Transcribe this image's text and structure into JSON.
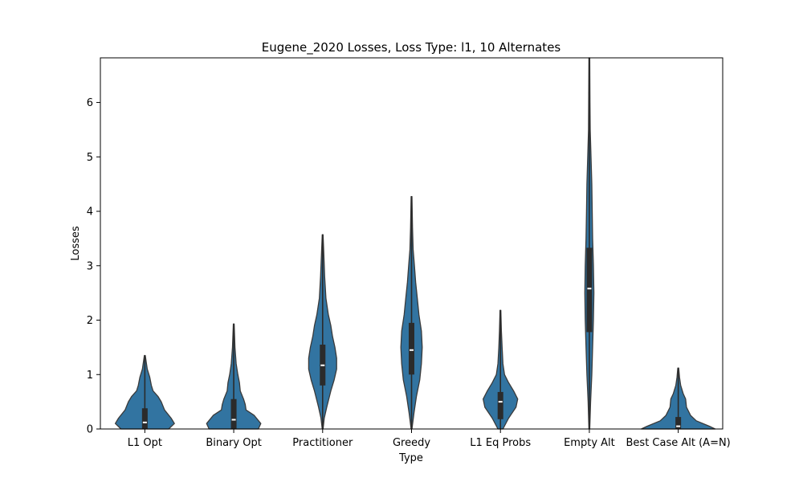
{
  "chart_data": {
    "type": "violin",
    "title": "Eugene_2020 Losses, Loss Type: l1, 10 Alternates",
    "xlabel": "Type",
    "ylabel": "Losses",
    "ylim": [
      0,
      6.82
    ],
    "yticks": [
      0,
      1,
      2,
      3,
      4,
      5,
      6
    ],
    "grid": false,
    "colors": {
      "violin": "#3274a1",
      "outline": "#3a3a3a",
      "box": "#2b2b2b",
      "median": "#ffffff"
    },
    "categories": [
      "L1 Opt",
      "Binary Opt",
      "Practitioner",
      "Greedy",
      "L1 Eq Probs",
      "Empty Alt",
      "Best Case Alt (A=N)"
    ],
    "series": [
      {
        "category": "L1 Opt",
        "min": 0,
        "q1": 0.0,
        "median": 0.12,
        "q3": 0.38,
        "max": 1.35,
        "density": [
          [
            0,
            0.29
          ],
          [
            0.1,
            0.36
          ],
          [
            0.2,
            0.32
          ],
          [
            0.35,
            0.24
          ],
          [
            0.5,
            0.2
          ],
          [
            0.6,
            0.16
          ],
          [
            0.7,
            0.1
          ],
          [
            0.8,
            0.08
          ],
          [
            0.95,
            0.06
          ],
          [
            1.1,
            0.03
          ],
          [
            1.25,
            0.015
          ],
          [
            1.35,
            0.005
          ]
        ]
      },
      {
        "category": "Binary Opt",
        "min": 0,
        "q1": 0.0,
        "median": 0.17,
        "q3": 0.55,
        "max": 1.93,
        "density": [
          [
            0,
            0.3
          ],
          [
            0.1,
            0.33
          ],
          [
            0.25,
            0.25
          ],
          [
            0.35,
            0.15
          ],
          [
            0.45,
            0.14
          ],
          [
            0.55,
            0.12
          ],
          [
            0.7,
            0.08
          ],
          [
            0.85,
            0.07
          ],
          [
            1.0,
            0.05
          ],
          [
            1.2,
            0.03
          ],
          [
            1.5,
            0.015
          ],
          [
            1.93,
            0.005
          ]
        ]
      },
      {
        "category": "Practitioner",
        "min": 0,
        "q1": 0.8,
        "median": 1.17,
        "q3": 1.55,
        "max": 3.57,
        "density": [
          [
            0,
            0.005
          ],
          [
            0.2,
            0.02
          ],
          [
            0.4,
            0.05
          ],
          [
            0.7,
            0.1
          ],
          [
            0.9,
            0.14
          ],
          [
            1.1,
            0.17
          ],
          [
            1.3,
            0.17
          ],
          [
            1.5,
            0.15
          ],
          [
            1.7,
            0.12
          ],
          [
            1.9,
            0.1
          ],
          [
            2.1,
            0.07
          ],
          [
            2.4,
            0.04
          ],
          [
            2.8,
            0.025
          ],
          [
            3.2,
            0.015
          ],
          [
            3.57,
            0.005
          ]
        ]
      },
      {
        "category": "Greedy",
        "min": 0,
        "q1": 1.0,
        "median": 1.45,
        "q3": 1.95,
        "max": 4.27,
        "density": [
          [
            0,
            0.005
          ],
          [
            0.3,
            0.03
          ],
          [
            0.6,
            0.06
          ],
          [
            0.9,
            0.1
          ],
          [
            1.2,
            0.12
          ],
          [
            1.5,
            0.13
          ],
          [
            1.8,
            0.12
          ],
          [
            2.1,
            0.09
          ],
          [
            2.4,
            0.07
          ],
          [
            2.7,
            0.05
          ],
          [
            3.0,
            0.035
          ],
          [
            3.3,
            0.02
          ],
          [
            3.7,
            0.012
          ],
          [
            4.27,
            0.005
          ]
        ]
      },
      {
        "category": "L1 Eq Probs",
        "min": 0,
        "q1": 0.18,
        "median": 0.5,
        "q3": 0.68,
        "max": 2.18,
        "density": [
          [
            0,
            0.03
          ],
          [
            0.2,
            0.1
          ],
          [
            0.4,
            0.19
          ],
          [
            0.55,
            0.21
          ],
          [
            0.7,
            0.16
          ],
          [
            0.85,
            0.1
          ],
          [
            1.0,
            0.05
          ],
          [
            1.2,
            0.03
          ],
          [
            1.5,
            0.02
          ],
          [
            1.8,
            0.012
          ],
          [
            2.18,
            0.005
          ]
        ]
      },
      {
        "category": "Empty Alt",
        "min": 0,
        "q1": 1.78,
        "median": 2.58,
        "q3": 3.33,
        "max": 6.82,
        "density": [
          [
            0,
            0.005
          ],
          [
            0.5,
            0.015
          ],
          [
            1.0,
            0.03
          ],
          [
            1.5,
            0.04
          ],
          [
            2.0,
            0.05
          ],
          [
            2.5,
            0.055
          ],
          [
            3.0,
            0.05
          ],
          [
            3.5,
            0.04
          ],
          [
            4.0,
            0.035
          ],
          [
            4.5,
            0.03
          ],
          [
            5.0,
            0.02
          ],
          [
            5.5,
            0.01
          ],
          [
            6.0,
            0.008
          ],
          [
            6.82,
            0.005
          ]
        ]
      },
      {
        "category": "Best Case Alt (A=N)",
        "min": 0,
        "q1": 0.0,
        "median": 0.05,
        "q3": 0.22,
        "max": 1.12,
        "density": [
          [
            0,
            0.45
          ],
          [
            0.05,
            0.38
          ],
          [
            0.15,
            0.22
          ],
          [
            0.25,
            0.15
          ],
          [
            0.4,
            0.1
          ],
          [
            0.55,
            0.09
          ],
          [
            0.65,
            0.06
          ],
          [
            0.8,
            0.03
          ],
          [
            0.95,
            0.015
          ],
          [
            1.12,
            0.005
          ]
        ]
      }
    ]
  }
}
